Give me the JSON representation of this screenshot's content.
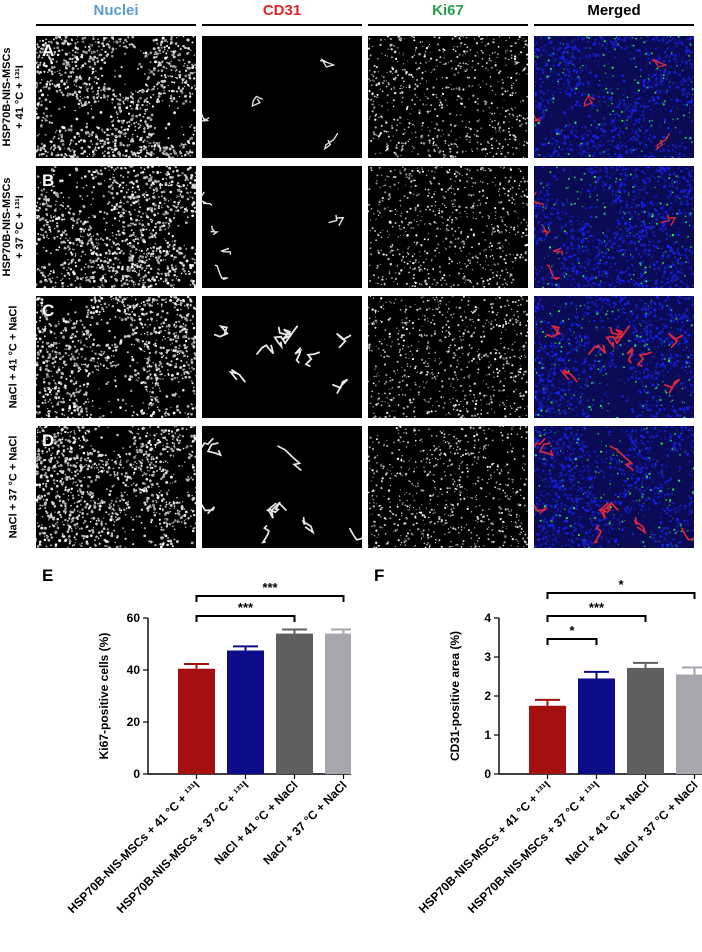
{
  "columns": [
    {
      "label": "Nuclei",
      "color": "#5b9bd5"
    },
    {
      "label": "CD31",
      "color": "#e0242a"
    },
    {
      "label": "Ki67",
      "color": "#22a04b"
    },
    {
      "label": "Merged",
      "color": "#000000"
    }
  ],
  "rows": [
    {
      "letter": "A",
      "label": "HSP70B-NIS-MSCs\n+ 41 °C + ¹³¹I"
    },
    {
      "letter": "B",
      "label": "HSP70B-NIS-MSCs\n+ 37 °C + ¹³¹I"
    },
    {
      "letter": "C",
      "label": "NaCl + 41 °C + NaCl"
    },
    {
      "letter": "D",
      "label": "NaCl + 37 °C + NaCl"
    }
  ],
  "panels": {
    "E": "E",
    "F": "F"
  },
  "chart_data": [
    {
      "type": "bar",
      "panel": "E",
      "ylabel": "Ki67-positive cells (%)",
      "ylim": [
        0,
        60
      ],
      "yticks": [
        0,
        20,
        40,
        60
      ],
      "categories": [
        "HSP70B-NIS-MSCs + 41 °C + ¹³¹I",
        "HSP70B-NIS-MSCs + 37 °C + ¹³¹I",
        "NaCl + 41 °C + NaCl",
        "NaCl + 37 °C + NaCl"
      ],
      "values": [
        40.5,
        47.5,
        54,
        54
      ],
      "errors": [
        1.8,
        1.6,
        1.6,
        1.6
      ],
      "colors": [
        "#a50f0f",
        "#0d0d8a",
        "#5f5f5f",
        "#a6a6ae"
      ],
      "significance": [
        {
          "from": 0,
          "to": 3,
          "label": "***"
        },
        {
          "from": 0,
          "to": 2,
          "label": "***"
        }
      ]
    },
    {
      "type": "bar",
      "panel": "F",
      "ylabel": "CD31-positive area (%)",
      "ylim": [
        0,
        4
      ],
      "yticks": [
        0,
        1,
        2,
        3,
        4
      ],
      "categories": [
        "HSP70B-NIS-MSCs + 41 °C + ¹³¹I",
        "HSP70B-NIS-MSCs + 37 °C + ¹³¹I",
        "NaCl + 41 °C + NaCl",
        "NaCl + 37 °C + NaCl"
      ],
      "values": [
        1.75,
        2.45,
        2.72,
        2.55
      ],
      "errors": [
        0.15,
        0.17,
        0.13,
        0.18
      ],
      "colors": [
        "#a50f0f",
        "#0d0d8a",
        "#5f5f5f",
        "#a6a6ae"
      ],
      "significance": [
        {
          "from": 0,
          "to": 3,
          "label": "*"
        },
        {
          "from": 0,
          "to": 2,
          "label": "***"
        },
        {
          "from": 0,
          "to": 1,
          "label": "*"
        }
      ]
    }
  ]
}
